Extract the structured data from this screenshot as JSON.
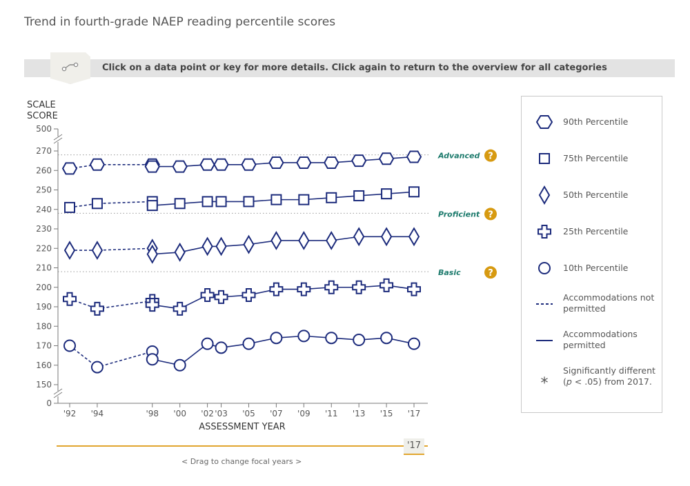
{
  "title": "Trend in fourth-grade NAEP reading percentile scores",
  "instruction": "Click on a data point or key for more details. Click again to return to the overview for all categories",
  "slider": {
    "label": "< Drag to change focal years >",
    "focal_year": "'17"
  },
  "legend": {
    "p90": "90th Percentile",
    "p75": "75th Percentile",
    "p50": "50th Percentile",
    "p25": "25th Percentile",
    "p10": "10th Percentile",
    "not_permitted": "Accommodations not permitted",
    "permitted": "Accommodations permitted",
    "significance_prefix": "Significantly different (",
    "significance_p": "p",
    "significance_suffix": " < .05) from 2017.",
    "asterisk": "*"
  },
  "chart_data": {
    "type": "line",
    "ylabel_line1": "SCALE",
    "ylabel_line2": "SCORE",
    "xlabel": "ASSESSMENT YEAR",
    "ylim": [
      150,
      270
    ],
    "y_break_top": 500,
    "y_break_bottom": 0,
    "yticks": [
      0,
      150,
      160,
      170,
      180,
      190,
      200,
      210,
      220,
      230,
      240,
      250,
      260,
      270,
      500
    ],
    "x_ticks": [
      "'92",
      "'94",
      "'98",
      "'00",
      "'02",
      "'03",
      "'05",
      "'07",
      "'09",
      "'11",
      "'13",
      "'15",
      "'17"
    ],
    "x_years": [
      1992,
      1994,
      1998,
      2000,
      2002,
      2003,
      2005,
      2007,
      2009,
      2011,
      2013,
      2015,
      2017
    ],
    "achievement_levels": [
      {
        "name": "Advanced",
        "value": 268
      },
      {
        "name": "Proficient",
        "value": 238
      },
      {
        "name": "Basic",
        "value": 208
      }
    ],
    "colors": {
      "series": "#1b2a7b",
      "level_text": "#1c7a6c",
      "help": "#d79a11",
      "accent": "#e1a52d"
    },
    "series": [
      {
        "name": "90th Percentile",
        "marker": "hexagon",
        "not_permitted": [
          [
            1992,
            261
          ],
          [
            1994,
            263
          ],
          [
            1998,
            263
          ]
        ],
        "permitted": [
          [
            1998,
            262
          ],
          [
            2000,
            262
          ],
          [
            2002,
            263
          ],
          [
            2003,
            263
          ],
          [
            2005,
            263
          ],
          [
            2007,
            264
          ],
          [
            2009,
            264
          ],
          [
            2011,
            264
          ],
          [
            2013,
            265
          ],
          [
            2015,
            266
          ],
          [
            2017,
            267
          ]
        ]
      },
      {
        "name": "75th Percentile",
        "marker": "square",
        "not_permitted": [
          [
            1992,
            241
          ],
          [
            1994,
            243
          ],
          [
            1998,
            244
          ]
        ],
        "permitted": [
          [
            1998,
            242
          ],
          [
            2000,
            243
          ],
          [
            2002,
            244
          ],
          [
            2003,
            244
          ],
          [
            2005,
            244
          ],
          [
            2007,
            245
          ],
          [
            2009,
            245
          ],
          [
            2011,
            246
          ],
          [
            2013,
            247
          ],
          [
            2015,
            248
          ],
          [
            2017,
            249
          ]
        ]
      },
      {
        "name": "50th Percentile",
        "marker": "diamond",
        "not_permitted": [
          [
            1992,
            219
          ],
          [
            1994,
            219
          ],
          [
            1998,
            220
          ]
        ],
        "permitted": [
          [
            1998,
            217
          ],
          [
            2000,
            218
          ],
          [
            2002,
            221
          ],
          [
            2003,
            221
          ],
          [
            2005,
            222
          ],
          [
            2007,
            224
          ],
          [
            2009,
            224
          ],
          [
            2011,
            224
          ],
          [
            2013,
            226
          ],
          [
            2015,
            226
          ],
          [
            2017,
            226
          ]
        ]
      },
      {
        "name": "25th Percentile",
        "marker": "plus",
        "not_permitted": [
          [
            1992,
            194
          ],
          [
            1994,
            189
          ],
          [
            1998,
            193
          ]
        ],
        "permitted": [
          [
            1998,
            191
          ],
          [
            2000,
            189
          ],
          [
            2002,
            196
          ],
          [
            2003,
            195
          ],
          [
            2005,
            196
          ],
          [
            2007,
            199
          ],
          [
            2009,
            199
          ],
          [
            2011,
            200
          ],
          [
            2013,
            200
          ],
          [
            2015,
            201
          ],
          [
            2017,
            199
          ]
        ]
      },
      {
        "name": "10th Percentile",
        "marker": "circle",
        "not_permitted": [
          [
            1992,
            170
          ],
          [
            1994,
            159
          ],
          [
            1998,
            167
          ]
        ],
        "permitted": [
          [
            1998,
            163
          ],
          [
            2000,
            160
          ],
          [
            2002,
            171
          ],
          [
            2003,
            169
          ],
          [
            2005,
            171
          ],
          [
            2007,
            174
          ],
          [
            2009,
            175
          ],
          [
            2011,
            174
          ],
          [
            2013,
            173
          ],
          [
            2015,
            174
          ],
          [
            2017,
            171
          ]
        ]
      }
    ]
  }
}
